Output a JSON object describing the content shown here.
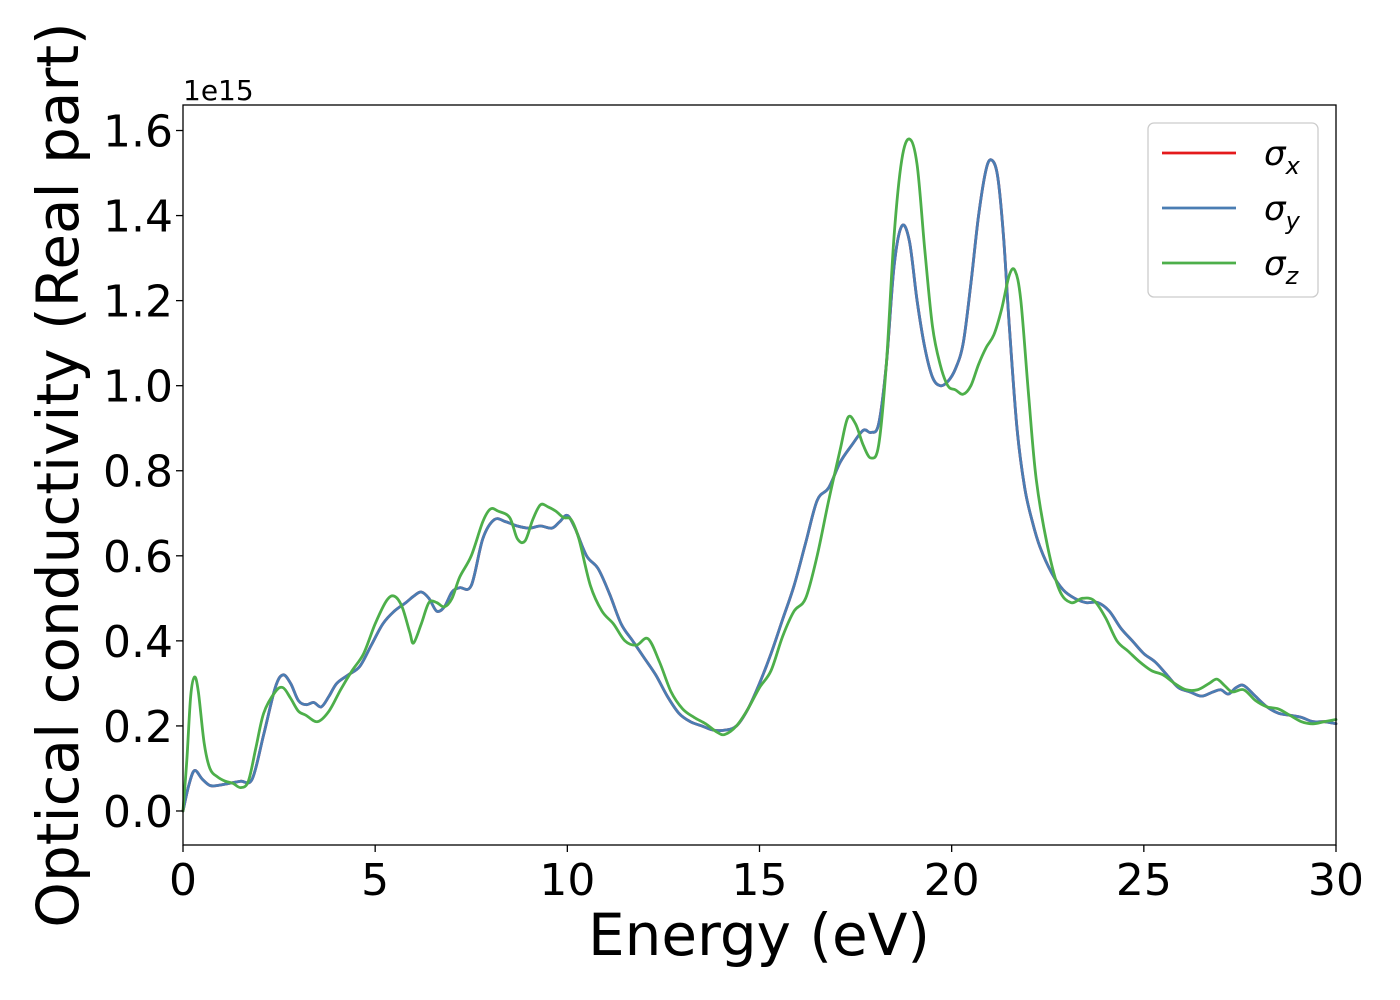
{
  "chart_data": {
    "type": "line",
    "xlabel": "Energy (eV)",
    "ylabel": "Optical conductivity (Real part)",
    "y_offset_label": "1e15",
    "xlim": [
      0,
      30
    ],
    "ylim": [
      -0.08,
      1.66
    ],
    "x_ticks": [
      0,
      5,
      10,
      15,
      20,
      25,
      30
    ],
    "x_tick_labels": [
      "0",
      "5",
      "10",
      "15",
      "20",
      "25",
      "30"
    ],
    "y_ticks": [
      0.0,
      0.2,
      0.4,
      0.6,
      0.8,
      1.0,
      1.2,
      1.4,
      1.6
    ],
    "y_tick_labels": [
      "0.0",
      "0.2",
      "0.4",
      "0.6",
      "0.8",
      "1.0",
      "1.2",
      "1.4",
      "1.6"
    ],
    "grid": false,
    "legend_position": "top-right",
    "series": [
      {
        "name": "σ",
        "subscript": "x",
        "color": "#e41a1c",
        "x": [
          0,
          0.15,
          0.3,
          0.5,
          0.7,
          0.9,
          1.2,
          1.5,
          1.8,
          2.1,
          2.4,
          2.6,
          2.8,
          3.0,
          3.2,
          3.4,
          3.6,
          3.8,
          4.0,
          4.3,
          4.6,
          4.9,
          5.2,
          5.5,
          5.8,
          6.0,
          6.2,
          6.4,
          6.6,
          6.8,
          7.0,
          7.2,
          7.5,
          7.8,
          8.1,
          8.4,
          8.7,
          9.0,
          9.3,
          9.6,
          9.8,
          10.0,
          10.2,
          10.5,
          10.8,
          11.1,
          11.4,
          11.7,
          12.0,
          12.3,
          12.6,
          12.9,
          13.2,
          13.5,
          13.8,
          14.1,
          14.4,
          14.7,
          15.0,
          15.3,
          15.6,
          15.9,
          16.2,
          16.5,
          16.8,
          17.1,
          17.4,
          17.7,
          17.9,
          18.1,
          18.3,
          18.5,
          18.7,
          18.9,
          19.1,
          19.3,
          19.5,
          19.7,
          19.9,
          20.1,
          20.3,
          20.5,
          20.7,
          20.9,
          21.05,
          21.2,
          21.35,
          21.5,
          21.7,
          21.9,
          22.1,
          22.3,
          22.6,
          22.9,
          23.2,
          23.5,
          23.8,
          24.1,
          24.4,
          24.7,
          25.0,
          25.3,
          25.6,
          25.9,
          26.2,
          26.5,
          26.8,
          27.0,
          27.2,
          27.4,
          27.6,
          27.9,
          28.2,
          28.5,
          28.8,
          29.1,
          29.4,
          29.7,
          30.0
        ],
        "values": [
          0.0,
          0.06,
          0.095,
          0.075,
          0.06,
          0.06,
          0.065,
          0.07,
          0.075,
          0.18,
          0.29,
          0.32,
          0.3,
          0.26,
          0.25,
          0.255,
          0.245,
          0.27,
          0.3,
          0.32,
          0.34,
          0.39,
          0.44,
          0.47,
          0.49,
          0.505,
          0.515,
          0.5,
          0.47,
          0.48,
          0.515,
          0.525,
          0.53,
          0.64,
          0.685,
          0.68,
          0.67,
          0.665,
          0.67,
          0.665,
          0.68,
          0.695,
          0.665,
          0.6,
          0.57,
          0.51,
          0.44,
          0.4,
          0.36,
          0.32,
          0.27,
          0.23,
          0.21,
          0.2,
          0.19,
          0.19,
          0.2,
          0.24,
          0.3,
          0.37,
          0.45,
          0.53,
          0.63,
          0.73,
          0.76,
          0.82,
          0.86,
          0.895,
          0.89,
          0.91,
          1.05,
          1.28,
          1.375,
          1.34,
          1.2,
          1.09,
          1.02,
          1.0,
          1.01,
          1.04,
          1.1,
          1.24,
          1.4,
          1.51,
          1.53,
          1.49,
          1.35,
          1.14,
          0.9,
          0.76,
          0.68,
          0.62,
          0.56,
          0.52,
          0.5,
          0.49,
          0.49,
          0.47,
          0.43,
          0.4,
          0.37,
          0.35,
          0.32,
          0.29,
          0.28,
          0.27,
          0.28,
          0.285,
          0.275,
          0.29,
          0.295,
          0.27,
          0.245,
          0.23,
          0.225,
          0.22,
          0.21,
          0.21,
          0.205
        ]
      },
      {
        "name": "σ",
        "subscript": "y",
        "color": "#4a7db3",
        "x": [
          0,
          0.15,
          0.3,
          0.5,
          0.7,
          0.9,
          1.2,
          1.5,
          1.8,
          2.1,
          2.4,
          2.6,
          2.8,
          3.0,
          3.2,
          3.4,
          3.6,
          3.8,
          4.0,
          4.3,
          4.6,
          4.9,
          5.2,
          5.5,
          5.8,
          6.0,
          6.2,
          6.4,
          6.6,
          6.8,
          7.0,
          7.2,
          7.5,
          7.8,
          8.1,
          8.4,
          8.7,
          9.0,
          9.3,
          9.6,
          9.8,
          10.0,
          10.2,
          10.5,
          10.8,
          11.1,
          11.4,
          11.7,
          12.0,
          12.3,
          12.6,
          12.9,
          13.2,
          13.5,
          13.8,
          14.1,
          14.4,
          14.7,
          15.0,
          15.3,
          15.6,
          15.9,
          16.2,
          16.5,
          16.8,
          17.1,
          17.4,
          17.7,
          17.9,
          18.1,
          18.3,
          18.5,
          18.7,
          18.9,
          19.1,
          19.3,
          19.5,
          19.7,
          19.9,
          20.1,
          20.3,
          20.5,
          20.7,
          20.9,
          21.05,
          21.2,
          21.35,
          21.5,
          21.7,
          21.9,
          22.1,
          22.3,
          22.6,
          22.9,
          23.2,
          23.5,
          23.8,
          24.1,
          24.4,
          24.7,
          25.0,
          25.3,
          25.6,
          25.9,
          26.2,
          26.5,
          26.8,
          27.0,
          27.2,
          27.4,
          27.6,
          27.9,
          28.2,
          28.5,
          28.8,
          29.1,
          29.4,
          29.7,
          30.0
        ],
        "values": [
          0.0,
          0.06,
          0.095,
          0.075,
          0.06,
          0.06,
          0.065,
          0.07,
          0.075,
          0.18,
          0.29,
          0.32,
          0.3,
          0.26,
          0.25,
          0.255,
          0.245,
          0.27,
          0.3,
          0.32,
          0.34,
          0.39,
          0.44,
          0.47,
          0.49,
          0.505,
          0.515,
          0.5,
          0.47,
          0.48,
          0.515,
          0.525,
          0.53,
          0.64,
          0.685,
          0.68,
          0.67,
          0.665,
          0.67,
          0.665,
          0.68,
          0.695,
          0.665,
          0.6,
          0.57,
          0.51,
          0.44,
          0.4,
          0.36,
          0.32,
          0.27,
          0.23,
          0.21,
          0.2,
          0.19,
          0.19,
          0.2,
          0.24,
          0.3,
          0.37,
          0.45,
          0.53,
          0.63,
          0.73,
          0.76,
          0.82,
          0.86,
          0.895,
          0.89,
          0.91,
          1.05,
          1.28,
          1.375,
          1.34,
          1.2,
          1.09,
          1.02,
          1.0,
          1.01,
          1.04,
          1.1,
          1.24,
          1.4,
          1.51,
          1.53,
          1.49,
          1.35,
          1.14,
          0.9,
          0.76,
          0.68,
          0.62,
          0.56,
          0.52,
          0.5,
          0.49,
          0.49,
          0.47,
          0.43,
          0.4,
          0.37,
          0.35,
          0.32,
          0.29,
          0.28,
          0.27,
          0.28,
          0.285,
          0.275,
          0.29,
          0.295,
          0.27,
          0.245,
          0.23,
          0.225,
          0.22,
          0.21,
          0.21,
          0.205
        ]
      },
      {
        "name": "σ",
        "subscript": "z",
        "color": "#4daf4a",
        "x": [
          0,
          0.1,
          0.2,
          0.3,
          0.4,
          0.55,
          0.7,
          0.9,
          1.1,
          1.3,
          1.5,
          1.7,
          1.9,
          2.1,
          2.4,
          2.6,
          2.8,
          3.0,
          3.2,
          3.5,
          3.8,
          4.1,
          4.4,
          4.7,
          5.0,
          5.3,
          5.5,
          5.7,
          5.9,
          6.0,
          6.2,
          6.4,
          6.6,
          6.8,
          7.0,
          7.2,
          7.5,
          7.8,
          8.0,
          8.2,
          8.5,
          8.7,
          8.9,
          9.1,
          9.3,
          9.5,
          9.7,
          9.9,
          10.1,
          10.3,
          10.6,
          10.9,
          11.2,
          11.5,
          11.8,
          12.1,
          12.4,
          12.7,
          13.0,
          13.3,
          13.6,
          13.9,
          14.1,
          14.4,
          14.7,
          15.0,
          15.3,
          15.6,
          15.9,
          16.2,
          16.5,
          16.8,
          17.1,
          17.3,
          17.5,
          17.7,
          17.9,
          18.1,
          18.3,
          18.5,
          18.7,
          18.9,
          19.1,
          19.3,
          19.5,
          19.7,
          19.9,
          20.1,
          20.3,
          20.5,
          20.7,
          20.9,
          21.1,
          21.3,
          21.5,
          21.65,
          21.8,
          22.0,
          22.2,
          22.5,
          22.8,
          23.1,
          23.4,
          23.7,
          24.0,
          24.3,
          24.6,
          24.9,
          25.2,
          25.5,
          25.8,
          26.1,
          26.4,
          26.7,
          26.9,
          27.1,
          27.3,
          27.6,
          27.9,
          28.2,
          28.5,
          28.8,
          29.1,
          29.4,
          29.7,
          30.0
        ],
        "values": [
          0.0,
          0.12,
          0.27,
          0.315,
          0.28,
          0.16,
          0.1,
          0.08,
          0.07,
          0.065,
          0.055,
          0.07,
          0.15,
          0.23,
          0.28,
          0.29,
          0.265,
          0.235,
          0.225,
          0.21,
          0.235,
          0.285,
          0.33,
          0.37,
          0.44,
          0.495,
          0.505,
          0.48,
          0.42,
          0.395,
          0.44,
          0.49,
          0.49,
          0.48,
          0.5,
          0.55,
          0.6,
          0.68,
          0.71,
          0.705,
          0.69,
          0.64,
          0.635,
          0.685,
          0.72,
          0.715,
          0.705,
          0.69,
          0.685,
          0.64,
          0.53,
          0.47,
          0.44,
          0.4,
          0.39,
          0.405,
          0.35,
          0.28,
          0.24,
          0.22,
          0.205,
          0.185,
          0.18,
          0.2,
          0.24,
          0.29,
          0.33,
          0.41,
          0.47,
          0.5,
          0.6,
          0.73,
          0.85,
          0.925,
          0.91,
          0.86,
          0.83,
          0.86,
          1.05,
          1.35,
          1.53,
          1.58,
          1.52,
          1.32,
          1.14,
          1.05,
          1.0,
          0.99,
          0.98,
          1.0,
          1.05,
          1.09,
          1.12,
          1.18,
          1.26,
          1.27,
          1.2,
          0.98,
          0.78,
          0.62,
          0.52,
          0.49,
          0.5,
          0.495,
          0.455,
          0.4,
          0.375,
          0.35,
          0.33,
          0.32,
          0.3,
          0.285,
          0.285,
          0.3,
          0.31,
          0.295,
          0.28,
          0.285,
          0.26,
          0.245,
          0.24,
          0.225,
          0.21,
          0.205,
          0.21,
          0.215
        ]
      }
    ]
  }
}
